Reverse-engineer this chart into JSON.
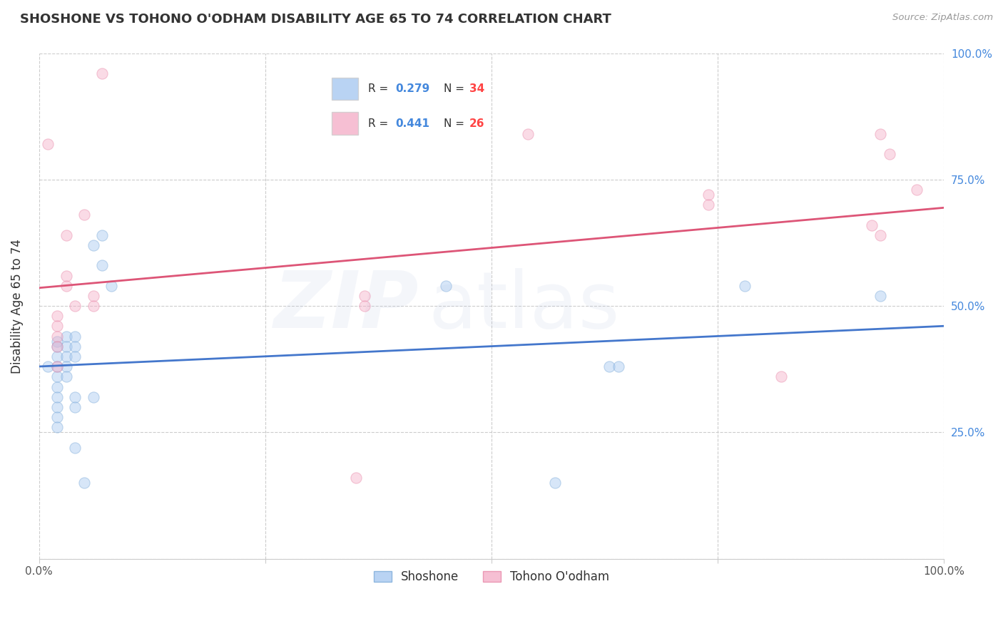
{
  "title": "SHOSHONE VS TOHONO O'ODHAM DISABILITY AGE 65 TO 74 CORRELATION CHART",
  "source": "Source: ZipAtlas.com",
  "ylabel": "Disability Age 65 to 74",
  "xlim": [
    0,
    1
  ],
  "ylim": [
    0,
    1
  ],
  "shoshone_color": "#a8c8f0",
  "shoshone_edge_color": "#7baad8",
  "tohono_color": "#f4b0c8",
  "tohono_edge_color": "#e888a8",
  "shoshone_line_color": "#4477cc",
  "tohono_line_color": "#dd5577",
  "R_shoshone": 0.279,
  "N_shoshone": 34,
  "R_tohono": 0.441,
  "N_tohono": 26,
  "shoshone_points": [
    [
      0.01,
      0.38
    ],
    [
      0.02,
      0.43
    ],
    [
      0.02,
      0.42
    ],
    [
      0.02,
      0.4
    ],
    [
      0.02,
      0.38
    ],
    [
      0.02,
      0.36
    ],
    [
      0.02,
      0.34
    ],
    [
      0.02,
      0.32
    ],
    [
      0.02,
      0.3
    ],
    [
      0.02,
      0.28
    ],
    [
      0.02,
      0.26
    ],
    [
      0.03,
      0.44
    ],
    [
      0.03,
      0.42
    ],
    [
      0.03,
      0.4
    ],
    [
      0.03,
      0.38
    ],
    [
      0.03,
      0.36
    ],
    [
      0.04,
      0.44
    ],
    [
      0.04,
      0.42
    ],
    [
      0.04,
      0.4
    ],
    [
      0.04,
      0.32
    ],
    [
      0.04,
      0.3
    ],
    [
      0.04,
      0.22
    ],
    [
      0.05,
      0.15
    ],
    [
      0.06,
      0.32
    ],
    [
      0.06,
      0.62
    ],
    [
      0.07,
      0.64
    ],
    [
      0.07,
      0.58
    ],
    [
      0.08,
      0.54
    ],
    [
      0.45,
      0.54
    ],
    [
      0.57,
      0.15
    ],
    [
      0.63,
      0.38
    ],
    [
      0.64,
      0.38
    ],
    [
      0.78,
      0.54
    ],
    [
      0.93,
      0.52
    ]
  ],
  "tohono_points": [
    [
      0.01,
      0.82
    ],
    [
      0.02,
      0.48
    ],
    [
      0.02,
      0.46
    ],
    [
      0.02,
      0.44
    ],
    [
      0.02,
      0.42
    ],
    [
      0.02,
      0.38
    ],
    [
      0.03,
      0.56
    ],
    [
      0.03,
      0.54
    ],
    [
      0.03,
      0.64
    ],
    [
      0.04,
      0.5
    ],
    [
      0.05,
      0.68
    ],
    [
      0.06,
      0.52
    ],
    [
      0.06,
      0.5
    ],
    [
      0.07,
      0.96
    ],
    [
      0.35,
      0.16
    ],
    [
      0.36,
      0.52
    ],
    [
      0.36,
      0.5
    ],
    [
      0.54,
      0.84
    ],
    [
      0.74,
      0.72
    ],
    [
      0.74,
      0.7
    ],
    [
      0.82,
      0.36
    ],
    [
      0.92,
      0.66
    ],
    [
      0.93,
      0.64
    ],
    [
      0.93,
      0.84
    ],
    [
      0.94,
      0.8
    ],
    [
      0.97,
      0.73
    ]
  ],
  "background_color": "#ffffff",
  "grid_color": "#cccccc",
  "marker_size": 120,
  "marker_alpha": 0.45,
  "title_fontsize": 13,
  "axis_label_fontsize": 12,
  "tick_fontsize": 11,
  "legend_fontsize": 12,
  "watermark_text": "ZIP",
  "watermark_text2": "atlas",
  "watermark_alpha": 0.12,
  "watermark_fontsize": 80
}
